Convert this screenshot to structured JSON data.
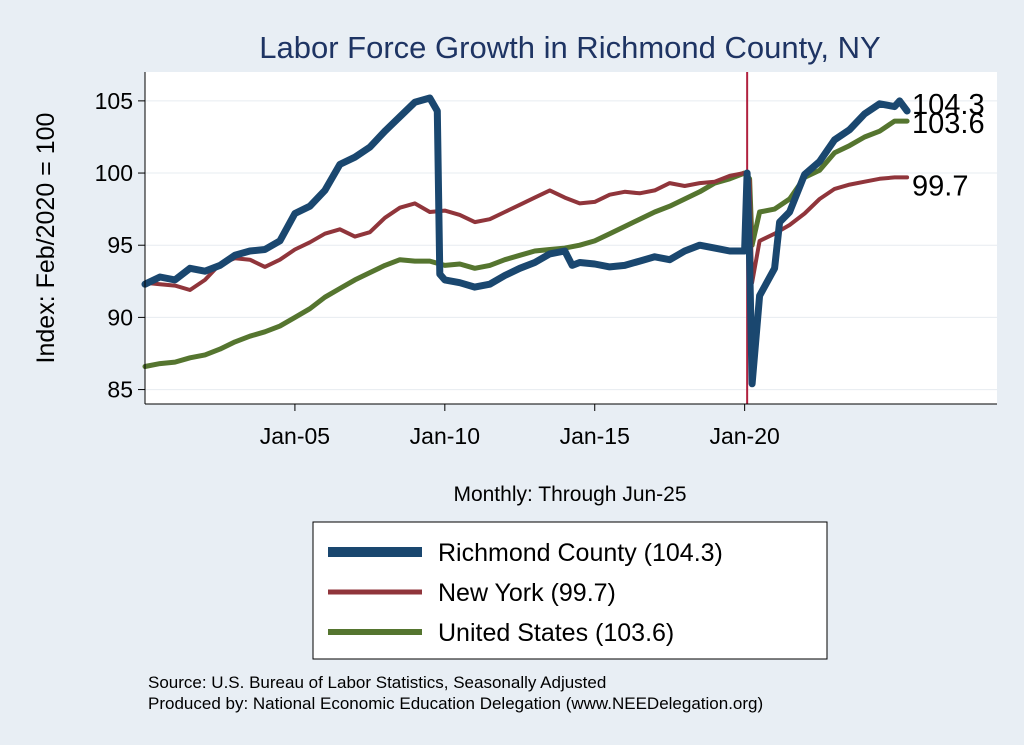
{
  "chart_data": {
    "type": "line",
    "title": "Labor Force Growth in Richmond  County, NY",
    "ylabel": "Index: Feb/2020 = 100",
    "xlabel": "Monthly: Through Jun-25",
    "xlim": [
      "2000-01",
      "2028-06"
    ],
    "ylim": [
      84,
      107
    ],
    "yticks": [
      85,
      90,
      95,
      100,
      105
    ],
    "xticks": [
      {
        "date": "2005-01",
        "label": "Jan-05"
      },
      {
        "date": "2010-01",
        "label": "Jan-10"
      },
      {
        "date": "2015-01",
        "label": "Jan-15"
      },
      {
        "date": "2020-01",
        "label": "Jan-20"
      }
    ],
    "reference_line": {
      "x": "2020-02",
      "color": "#b0213f"
    },
    "legend": {
      "placement": "bottom-center"
    },
    "series": [
      {
        "name": "Richmond  County (104.3)",
        "color": "#1a476f",
        "end_label": "104.3",
        "points": [
          [
            "2000-01",
            92.3
          ],
          [
            "2000-07",
            92.8
          ],
          [
            "2001-01",
            92.6
          ],
          [
            "2001-07",
            93.4
          ],
          [
            "2002-01",
            93.2
          ],
          [
            "2002-07",
            93.6
          ],
          [
            "2003-01",
            94.3
          ],
          [
            "2003-07",
            94.6
          ],
          [
            "2004-01",
            94.7
          ],
          [
            "2004-07",
            95.3
          ],
          [
            "2005-01",
            97.2
          ],
          [
            "2005-07",
            97.7
          ],
          [
            "2006-01",
            98.8
          ],
          [
            "2006-07",
            100.6
          ],
          [
            "2007-01",
            101.1
          ],
          [
            "2007-07",
            101.8
          ],
          [
            "2008-01",
            102.9
          ],
          [
            "2008-07",
            103.9
          ],
          [
            "2009-01",
            104.9
          ],
          [
            "2009-07",
            105.2
          ],
          [
            "2009-10",
            104.3
          ],
          [
            "2009-11",
            93.0
          ],
          [
            "2010-01",
            92.6
          ],
          [
            "2010-07",
            92.4
          ],
          [
            "2011-01",
            92.1
          ],
          [
            "2011-07",
            92.3
          ],
          [
            "2012-01",
            92.9
          ],
          [
            "2012-07",
            93.4
          ],
          [
            "2013-01",
            93.8
          ],
          [
            "2013-07",
            94.4
          ],
          [
            "2014-01",
            94.6
          ],
          [
            "2014-04",
            93.6
          ],
          [
            "2014-07",
            93.8
          ],
          [
            "2015-01",
            93.7
          ],
          [
            "2015-07",
            93.5
          ],
          [
            "2016-01",
            93.6
          ],
          [
            "2016-07",
            93.9
          ],
          [
            "2017-01",
            94.2
          ],
          [
            "2017-07",
            94.0
          ],
          [
            "2018-01",
            94.6
          ],
          [
            "2018-07",
            95.0
          ],
          [
            "2019-01",
            94.8
          ],
          [
            "2019-07",
            94.6
          ],
          [
            "2020-01",
            94.6
          ],
          [
            "2020-02",
            100.0
          ],
          [
            "2020-03",
            94.0
          ],
          [
            "2020-04",
            85.4
          ],
          [
            "2020-07",
            91.5
          ],
          [
            "2021-01",
            93.4
          ],
          [
            "2021-03",
            96.6
          ],
          [
            "2021-07",
            97.3
          ],
          [
            "2022-01",
            99.9
          ],
          [
            "2022-07",
            100.8
          ],
          [
            "2023-01",
            102.3
          ],
          [
            "2023-07",
            103.0
          ],
          [
            "2024-01",
            104.1
          ],
          [
            "2024-07",
            104.8
          ],
          [
            "2025-01",
            104.6
          ],
          [
            "2025-03",
            105.0
          ],
          [
            "2025-06",
            104.3
          ]
        ]
      },
      {
        "name": "New York (99.7)",
        "color": "#90353b",
        "end_label": "99.7",
        "points": [
          [
            "2000-01",
            92.4
          ],
          [
            "2000-07",
            92.3
          ],
          [
            "2001-01",
            92.2
          ],
          [
            "2001-07",
            91.9
          ],
          [
            "2002-01",
            92.6
          ],
          [
            "2002-07",
            93.7
          ],
          [
            "2003-01",
            94.1
          ],
          [
            "2003-07",
            94.0
          ],
          [
            "2004-01",
            93.5
          ],
          [
            "2004-07",
            94.0
          ],
          [
            "2005-01",
            94.7
          ],
          [
            "2005-07",
            95.2
          ],
          [
            "2006-01",
            95.8
          ],
          [
            "2006-07",
            96.1
          ],
          [
            "2007-01",
            95.6
          ],
          [
            "2007-07",
            95.9
          ],
          [
            "2008-01",
            96.9
          ],
          [
            "2008-07",
            97.6
          ],
          [
            "2009-01",
            97.9
          ],
          [
            "2009-07",
            97.3
          ],
          [
            "2010-01",
            97.4
          ],
          [
            "2010-07",
            97.1
          ],
          [
            "2011-01",
            96.6
          ],
          [
            "2011-07",
            96.8
          ],
          [
            "2012-01",
            97.3
          ],
          [
            "2012-07",
            97.8
          ],
          [
            "2013-01",
            98.3
          ],
          [
            "2013-07",
            98.8
          ],
          [
            "2014-01",
            98.3
          ],
          [
            "2014-07",
            97.9
          ],
          [
            "2015-01",
            98.0
          ],
          [
            "2015-07",
            98.5
          ],
          [
            "2016-01",
            98.7
          ],
          [
            "2016-07",
            98.6
          ],
          [
            "2017-01",
            98.8
          ],
          [
            "2017-07",
            99.3
          ],
          [
            "2018-01",
            99.1
          ],
          [
            "2018-07",
            99.3
          ],
          [
            "2019-01",
            99.4
          ],
          [
            "2019-07",
            99.8
          ],
          [
            "2020-01",
            100.0
          ],
          [
            "2020-03",
            99.5
          ],
          [
            "2020-04",
            92.4
          ],
          [
            "2020-07",
            95.3
          ],
          [
            "2021-01",
            95.8
          ],
          [
            "2021-07",
            96.4
          ],
          [
            "2022-01",
            97.2
          ],
          [
            "2022-07",
            98.2
          ],
          [
            "2023-01",
            98.9
          ],
          [
            "2023-07",
            99.2
          ],
          [
            "2024-01",
            99.4
          ],
          [
            "2024-07",
            99.6
          ],
          [
            "2025-01",
            99.7
          ],
          [
            "2025-06",
            99.7
          ]
        ]
      },
      {
        "name": "United States (103.6)",
        "color": "#55752f",
        "end_label": "103.6",
        "points": [
          [
            "2000-01",
            86.6
          ],
          [
            "2000-07",
            86.8
          ],
          [
            "2001-01",
            86.9
          ],
          [
            "2001-07",
            87.2
          ],
          [
            "2002-01",
            87.4
          ],
          [
            "2002-07",
            87.8
          ],
          [
            "2003-01",
            88.3
          ],
          [
            "2003-07",
            88.7
          ],
          [
            "2004-01",
            89.0
          ],
          [
            "2004-07",
            89.4
          ],
          [
            "2005-01",
            90.0
          ],
          [
            "2005-07",
            90.6
          ],
          [
            "2006-01",
            91.4
          ],
          [
            "2006-07",
            92.0
          ],
          [
            "2007-01",
            92.6
          ],
          [
            "2007-07",
            93.1
          ],
          [
            "2008-01",
            93.6
          ],
          [
            "2008-07",
            94.0
          ],
          [
            "2009-01",
            93.9
          ],
          [
            "2009-07",
            93.9
          ],
          [
            "2010-01",
            93.6
          ],
          [
            "2010-07",
            93.7
          ],
          [
            "2011-01",
            93.4
          ],
          [
            "2011-07",
            93.6
          ],
          [
            "2012-01",
            94.0
          ],
          [
            "2012-07",
            94.3
          ],
          [
            "2013-01",
            94.6
          ],
          [
            "2013-07",
            94.7
          ],
          [
            "2014-01",
            94.8
          ],
          [
            "2014-07",
            95.0
          ],
          [
            "2015-01",
            95.3
          ],
          [
            "2015-07",
            95.8
          ],
          [
            "2016-01",
            96.3
          ],
          [
            "2016-07",
            96.8
          ],
          [
            "2017-01",
            97.3
          ],
          [
            "2017-07",
            97.7
          ],
          [
            "2018-01",
            98.2
          ],
          [
            "2018-07",
            98.7
          ],
          [
            "2019-01",
            99.3
          ],
          [
            "2019-07",
            99.6
          ],
          [
            "2020-01",
            100.0
          ],
          [
            "2020-03",
            99.6
          ],
          [
            "2020-04",
            95.0
          ],
          [
            "2020-07",
            97.3
          ],
          [
            "2021-01",
            97.5
          ],
          [
            "2021-07",
            98.2
          ],
          [
            "2022-01",
            99.7
          ],
          [
            "2022-07",
            100.2
          ],
          [
            "2023-01",
            101.4
          ],
          [
            "2023-07",
            101.9
          ],
          [
            "2024-01",
            102.5
          ],
          [
            "2024-07",
            102.9
          ],
          [
            "2025-01",
            103.6
          ],
          [
            "2025-06",
            103.6
          ]
        ]
      }
    ]
  },
  "source_note": "Source: U.S. Bureau of Labor Statistics, Seasonally Adjusted",
  "produced_note": "Produced by: National Economic Education Delegation (www.NEEDelegation.org)"
}
